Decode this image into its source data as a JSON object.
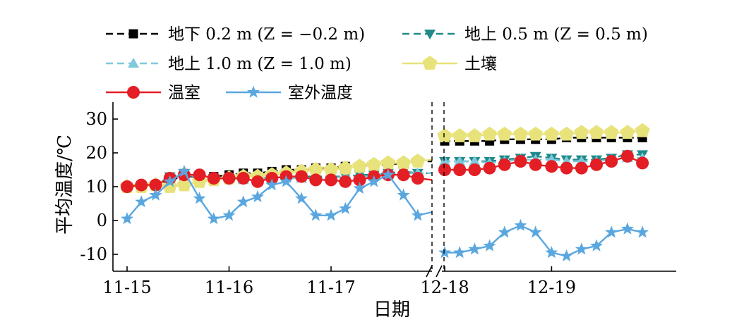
{
  "chart_data": {
    "type": "line",
    "ylabel": "平均温度/℃",
    "xlabel": "日期",
    "ylim": [
      -15,
      35
    ],
    "y_ticks": [
      30,
      20,
      10,
      0,
      -10
    ],
    "y_tick_labels": [
      "30",
      "20",
      "10",
      "0",
      "-10"
    ],
    "x_range": [
      11.78,
      13.0
    ],
    "x_ticks": [
      {
        "x": 1,
        "label": "11-15"
      },
      {
        "x": 2,
        "label": "11-16"
      },
      {
        "x": 3,
        "label": "11-17"
      },
      {
        "x": 4,
        "label": "12-18"
      },
      {
        "x": 5,
        "label": "12-19"
      }
    ],
    "axis_break_label": "//",
    "legend_placement": "top",
    "series": [
      {
        "name": "地下 0.2 m (Z = −0.2 m)",
        "color": "#000000",
        "marker": "square",
        "line": "dashed",
        "x": [
          1.0,
          1.14,
          1.28,
          1.42,
          1.56,
          1.71,
          1.85,
          2.0,
          2.14,
          2.28,
          2.42,
          2.56,
          2.71,
          2.85,
          3.0,
          3.14,
          3.28,
          3.42,
          3.56,
          3.71,
          3.85,
          3.99,
          4.0,
          4.14,
          4.28,
          4.42,
          4.56,
          4.71,
          4.85,
          5.0,
          5.14,
          5.28,
          5.42,
          5.56,
          5.71,
          5.85
        ],
        "y": [
          10,
          10,
          10.5,
          12,
          13,
          13,
          13,
          13.5,
          14,
          14,
          14.5,
          15,
          15,
          15.5,
          15.5,
          16,
          16,
          16.5,
          16.5,
          17,
          17.5,
          17.5,
          23.5,
          23.5,
          23.5,
          23.5,
          24,
          24,
          24,
          24,
          24.5,
          24.5,
          24.5,
          24.5,
          24.5,
          24.5
        ]
      },
      {
        "name": "地上 0.5 m (Z = 0.5 m)",
        "color": "#1f8a8a",
        "marker": "triangle-down",
        "line": "dashed",
        "x": [
          1.0,
          1.14,
          1.28,
          1.42,
          1.56,
          1.71,
          1.85,
          2.0,
          2.14,
          2.28,
          2.42,
          2.56,
          2.71,
          2.85,
          3.0,
          3.14,
          3.28,
          3.42,
          3.56,
          3.71,
          3.85,
          3.99,
          4.0,
          4.14,
          4.28,
          4.42,
          4.56,
          4.71,
          4.85,
          5.0,
          5.14,
          5.28,
          5.42,
          5.56,
          5.71,
          5.85
        ],
        "y": [
          10,
          10,
          10.5,
          13,
          14,
          13,
          12.5,
          12.5,
          12.5,
          12.5,
          12.5,
          13,
          13,
          13,
          13,
          13,
          13.5,
          13.5,
          14,
          14.5,
          14,
          14,
          17.5,
          17.5,
          17.5,
          17.5,
          18,
          18.5,
          19,
          18.5,
          18,
          18,
          18,
          18.5,
          19.5,
          19.5
        ]
      },
      {
        "name": "地上 1.0 m (Z = 1.0 m)",
        "color": "#7ec9dc",
        "marker": "triangle-up",
        "line": "dashed",
        "x": [
          1.0,
          1.14,
          1.28,
          1.42,
          1.56,
          1.71,
          1.85,
          2.0,
          2.14,
          2.28,
          2.42,
          2.56,
          2.71,
          2.85,
          3.0,
          3.14,
          3.28,
          3.42,
          3.56,
          3.71,
          3.85,
          3.99,
          4.0,
          4.14,
          4.28,
          4.42,
          4.56,
          4.71,
          4.85,
          5.0,
          5.14,
          5.28,
          5.42,
          5.56,
          5.71,
          5.85
        ],
        "y": [
          10,
          10,
          10.5,
          12.5,
          13.5,
          13,
          12.5,
          12.5,
          12,
          12,
          12.5,
          12.5,
          12.5,
          12.5,
          12.5,
          13,
          13,
          13,
          13.5,
          14,
          14,
          14,
          17.5,
          17.5,
          17.5,
          17,
          17.5,
          18,
          18,
          18,
          17.5,
          17.5,
          17.5,
          18,
          18.5,
          18.5
        ]
      },
      {
        "name": "土壤",
        "color": "#e8e27a",
        "marker": "pentagon",
        "line": "solid",
        "x": [
          1.0,
          1.14,
          1.28,
          1.42,
          1.56,
          1.71,
          1.85,
          2.0,
          2.14,
          2.28,
          2.42,
          2.56,
          2.71,
          2.85,
          3.0,
          3.14,
          3.28,
          3.42,
          3.56,
          3.71,
          3.85,
          3.99,
          4.0,
          4.14,
          4.28,
          4.42,
          4.56,
          4.71,
          4.85,
          5.0,
          5.14,
          5.28,
          5.42,
          5.56,
          5.71,
          5.85
        ],
        "y": [
          10,
          10,
          10.5,
          10,
          10.5,
          11.5,
          12,
          12.5,
          13,
          13,
          13.5,
          14,
          14.5,
          15,
          15,
          15.5,
          16,
          16.5,
          17,
          17,
          17.5,
          18,
          25,
          25,
          25,
          25.5,
          25.5,
          25.5,
          25.5,
          25.5,
          25.5,
          26,
          26,
          26,
          26,
          26.5
        ]
      },
      {
        "name": "温室",
        "color": "#e31e24",
        "marker": "circle",
        "line": "solid",
        "x": [
          1.0,
          1.14,
          1.28,
          1.42,
          1.56,
          1.71,
          1.85,
          2.0,
          2.14,
          2.28,
          2.42,
          2.56,
          2.71,
          2.85,
          3.0,
          3.14,
          3.28,
          3.42,
          3.56,
          3.71,
          3.85,
          3.99,
          4.0,
          4.14,
          4.28,
          4.42,
          4.56,
          4.71,
          4.85,
          5.0,
          5.14,
          5.28,
          5.42,
          5.56,
          5.71,
          5.85
        ],
        "y": [
          10,
          10.5,
          10.5,
          12.5,
          13.5,
          13.5,
          12.5,
          12.5,
          12.5,
          11.5,
          12.5,
          13,
          13,
          12,
          12,
          11.5,
          12,
          13,
          13.5,
          13.5,
          12.5,
          12,
          15,
          15,
          15,
          15.5,
          16.5,
          17.5,
          16.5,
          16,
          15.5,
          15.5,
          16.5,
          17.5,
          19,
          17
        ]
      },
      {
        "name": "室外温度",
        "color": "#5aa7e0",
        "marker": "star",
        "line": "solid",
        "x": [
          1.0,
          1.14,
          1.28,
          1.42,
          1.56,
          1.71,
          1.85,
          2.0,
          2.14,
          2.28,
          2.42,
          2.56,
          2.71,
          2.85,
          3.0,
          3.14,
          3.28,
          3.42,
          3.56,
          3.71,
          3.85,
          3.99,
          4.0,
          4.14,
          4.28,
          4.42,
          4.56,
          4.71,
          4.85,
          5.0,
          5.14,
          5.28,
          5.42,
          5.56,
          5.71,
          5.85
        ],
        "y": [
          0.5,
          5.5,
          7.5,
          11.5,
          14.5,
          6.5,
          0.5,
          1.5,
          5.5,
          7,
          10.5,
          11.5,
          6.5,
          1.5,
          1.5,
          3.5,
          9.5,
          11.5,
          13.5,
          7.5,
          1.5,
          2.5,
          -9.5,
          -9.5,
          -8.5,
          -7.5,
          -3.5,
          -1.5,
          -3.5,
          -9.5,
          -10.5,
          -8.5,
          -7.5,
          -3.5,
          -2.5,
          -3.5
        ]
      }
    ]
  }
}
